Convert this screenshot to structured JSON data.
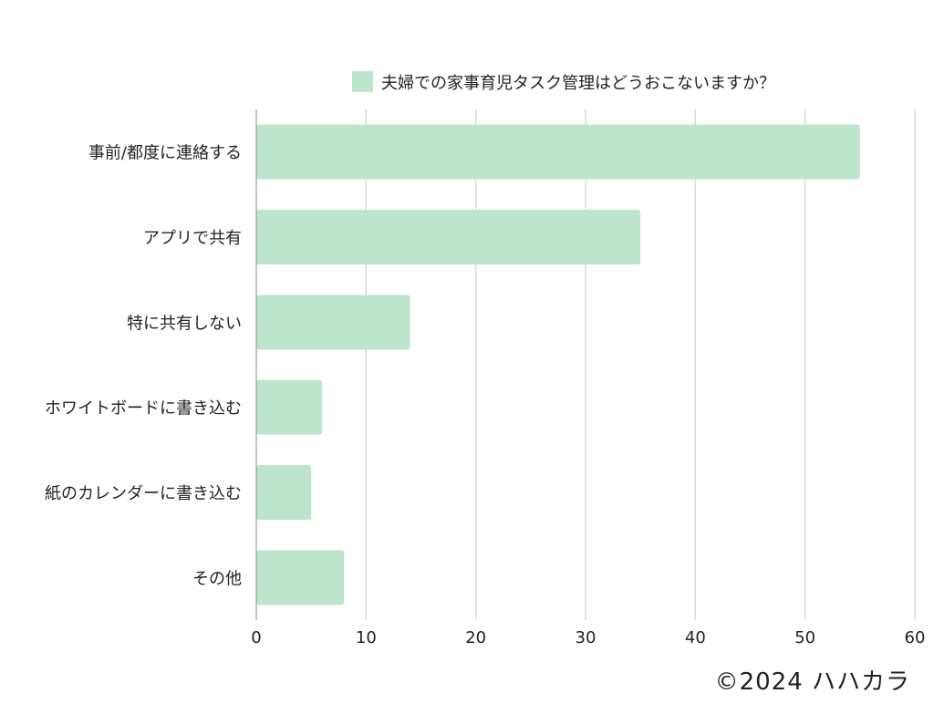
{
  "chart_data": {
    "type": "bar",
    "orientation": "horizontal",
    "legend_position": "top",
    "legend": "夫婦での家事育児タスク管理はどうおこないますか？",
    "categories": [
      "事前/都度に連絡する",
      "アプリで共有",
      "特に共有しない",
      "ホワイトボードに書き込む",
      "紙のカレンダーに書き込む",
      "その他"
    ],
    "series": [
      {
        "name": "夫婦での家事育児タスク管理はどうおこないますか？",
        "values": [
          55,
          35,
          14,
          6,
          5,
          8
        ],
        "color": "#bde4cd"
      }
    ],
    "xlim": [
      0,
      60
    ],
    "x_ticks": [
      "0",
      "10",
      "20",
      "30",
      "40",
      "50",
      "60"
    ],
    "grid": true,
    "gridline_color": "#d9d9d9",
    "axis_color": "#888888"
  },
  "footer": {
    "copyright": "©2024 ハハカラ"
  }
}
